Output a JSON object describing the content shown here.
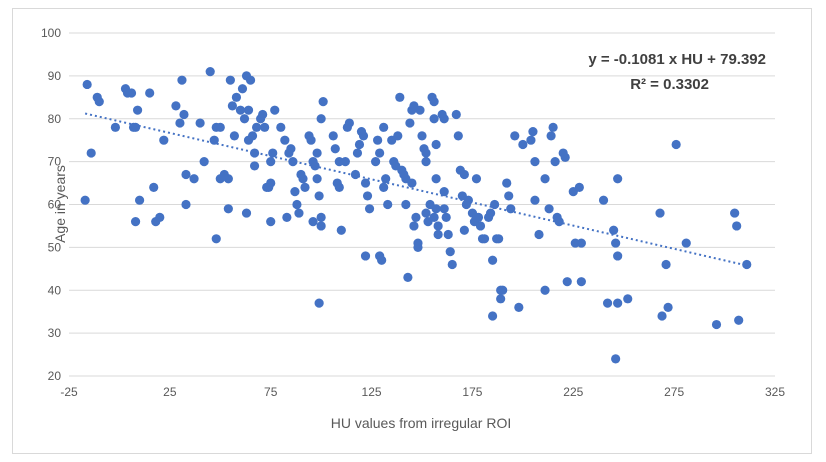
{
  "chart_data": {
    "type": "scatter",
    "title": "",
    "xlabel": "HU values from irregular ROI",
    "ylabel": "Age in years",
    "xlim": [
      -25,
      325
    ],
    "ylim": [
      20,
      100
    ],
    "x_ticks": [
      "-25",
      "25",
      "75",
      "125",
      "175",
      "225",
      "275",
      "325"
    ],
    "y_ticks": [
      "20",
      "30",
      "40",
      "50",
      "60",
      "70",
      "80",
      "90",
      "100"
    ],
    "grid": "horizontal",
    "legend": "none",
    "marker_color": "#4472C4",
    "trendline": {
      "type": "linear",
      "slope": -0.1081,
      "intercept": 79.392,
      "equation": "y = -0.1081 x HU + 79.392",
      "r_squared": "R² = 0.3302"
    },
    "points": [
      [
        -16,
        88
      ],
      [
        -14,
        72
      ],
      [
        -11,
        85
      ],
      [
        -10,
        84
      ],
      [
        -17,
        61
      ],
      [
        -2,
        78
      ],
      [
        3,
        87
      ],
      [
        4,
        86
      ],
      [
        6,
        86
      ],
      [
        8,
        78
      ],
      [
        9,
        82
      ],
      [
        7,
        78
      ],
      [
        10,
        61
      ],
      [
        8,
        56
      ],
      [
        15,
        86
      ],
      [
        17,
        64
      ],
      [
        18,
        56
      ],
      [
        20,
        57
      ],
      [
        22,
        75
      ],
      [
        28,
        83
      ],
      [
        30,
        79
      ],
      [
        31,
        89
      ],
      [
        32,
        81
      ],
      [
        33,
        67
      ],
      [
        33,
        60
      ],
      [
        37,
        66
      ],
      [
        40,
        79
      ],
      [
        42,
        70
      ],
      [
        45,
        91
      ],
      [
        47,
        75
      ],
      [
        48,
        78
      ],
      [
        50,
        78
      ],
      [
        52,
        67
      ],
      [
        50,
        66
      ],
      [
        48,
        52
      ],
      [
        54,
        66
      ],
      [
        54,
        59
      ],
      [
        55,
        89
      ],
      [
        56,
        83
      ],
      [
        57,
        76
      ],
      [
        58,
        85
      ],
      [
        60,
        82
      ],
      [
        61,
        87
      ],
      [
        62,
        80
      ],
      [
        63,
        90
      ],
      [
        64,
        82
      ],
      [
        65,
        89
      ],
      [
        66,
        76
      ],
      [
        64,
        75
      ],
      [
        63,
        58
      ],
      [
        67,
        69
      ],
      [
        67,
        72
      ],
      [
        68,
        78
      ],
      [
        70,
        80
      ],
      [
        71,
        81
      ],
      [
        72,
        78
      ],
      [
        73,
        64
      ],
      [
        74,
        64
      ],
      [
        75,
        65
      ],
      [
        75,
        70
      ],
      [
        76,
        72
      ],
      [
        77,
        82
      ],
      [
        75,
        56
      ],
      [
        80,
        78
      ],
      [
        82,
        75
      ],
      [
        84,
        72
      ],
      [
        85,
        73
      ],
      [
        86,
        70
      ],
      [
        87,
        63
      ],
      [
        88,
        60
      ],
      [
        89,
        58
      ],
      [
        83,
        57
      ],
      [
        90,
        67
      ],
      [
        91,
        66
      ],
      [
        92,
        64
      ],
      [
        94,
        76
      ],
      [
        95,
        75
      ],
      [
        96,
        70
      ],
      [
        97,
        69
      ],
      [
        98,
        72
      ],
      [
        98,
        66
      ],
      [
        99,
        62
      ],
      [
        96,
        56
      ],
      [
        100,
        80
      ],
      [
        101,
        84
      ],
      [
        100,
        55
      ],
      [
        100,
        57
      ],
      [
        99,
        37
      ],
      [
        106,
        76
      ],
      [
        107,
        73
      ],
      [
        108,
        65
      ],
      [
        109,
        70
      ],
      [
        109,
        64
      ],
      [
        110,
        54
      ],
      [
        112,
        70
      ],
      [
        113,
        78
      ],
      [
        114,
        79
      ],
      [
        117,
        67
      ],
      [
        118,
        72
      ],
      [
        119,
        74
      ],
      [
        120,
        77
      ],
      [
        121,
        76
      ],
      [
        122,
        65
      ],
      [
        123,
        62
      ],
      [
        122,
        48
      ],
      [
        124,
        59
      ],
      [
        127,
        70
      ],
      [
        128,
        75
      ],
      [
        129,
        72
      ],
      [
        129,
        48
      ],
      [
        130,
        47
      ],
      [
        131,
        78
      ],
      [
        132,
        66
      ],
      [
        133,
        60
      ],
      [
        131,
        64
      ],
      [
        135,
        75
      ],
      [
        136,
        70
      ],
      [
        137,
        69
      ],
      [
        138,
        76
      ],
      [
        139,
        85
      ],
      [
        140,
        68
      ],
      [
        141,
        67
      ],
      [
        142,
        66
      ],
      [
        142,
        60
      ],
      [
        144,
        79
      ],
      [
        145,
        82
      ],
      [
        146,
        83
      ],
      [
        145,
        65
      ],
      [
        143,
        43
      ],
      [
        147,
        57
      ],
      [
        148,
        51
      ],
      [
        148,
        50
      ],
      [
        146,
        55
      ],
      [
        149,
        82
      ],
      [
        150,
        76
      ],
      [
        151,
        73
      ],
      [
        152,
        72
      ],
      [
        152,
        70
      ],
      [
        152,
        58
      ],
      [
        153,
        56
      ],
      [
        154,
        60
      ],
      [
        155,
        85
      ],
      [
        156,
        84
      ],
      [
        156,
        80
      ],
      [
        156,
        57
      ],
      [
        157,
        59
      ],
      [
        158,
        55
      ],
      [
        158,
        53
      ],
      [
        157,
        74
      ],
      [
        157,
        66
      ],
      [
        160,
        81
      ],
      [
        161,
        80
      ],
      [
        161,
        63
      ],
      [
        161,
        59
      ],
      [
        162,
        57
      ],
      [
        163,
        53
      ],
      [
        164,
        49
      ],
      [
        165,
        46
      ],
      [
        167,
        81
      ],
      [
        168,
        76
      ],
      [
        169,
        68
      ],
      [
        170,
        62
      ],
      [
        171,
        67
      ],
      [
        171,
        54
      ],
      [
        172,
        60
      ],
      [
        173,
        61
      ],
      [
        175,
        58
      ],
      [
        176,
        56
      ],
      [
        177,
        57
      ],
      [
        177,
        66
      ],
      [
        178,
        57
      ],
      [
        179,
        55
      ],
      [
        180,
        52
      ],
      [
        181,
        52
      ],
      [
        183,
        57
      ],
      [
        184,
        58
      ],
      [
        185,
        47
      ],
      [
        185,
        34
      ],
      [
        186,
        60
      ],
      [
        187,
        52
      ],
      [
        188,
        52
      ],
      [
        189,
        40
      ],
      [
        189,
        38
      ],
      [
        190,
        40
      ],
      [
        192,
        65
      ],
      [
        193,
        62
      ],
      [
        194,
        59
      ],
      [
        196,
        76
      ],
      [
        198,
        36
      ],
      [
        200,
        74
      ],
      [
        204,
        75
      ],
      [
        205,
        77
      ],
      [
        206,
        70
      ],
      [
        206,
        61
      ],
      [
        208,
        53
      ],
      [
        211,
        66
      ],
      [
        211,
        40
      ],
      [
        213,
        59
      ],
      [
        214,
        76
      ],
      [
        215,
        78
      ],
      [
        216,
        70
      ],
      [
        217,
        57
      ],
      [
        218,
        56
      ],
      [
        220,
        72
      ],
      [
        221,
        71
      ],
      [
        222,
        42
      ],
      [
        225,
        63
      ],
      [
        226,
        51
      ],
      [
        228,
        64
      ],
      [
        229,
        51
      ],
      [
        229,
        42
      ],
      [
        240,
        61
      ],
      [
        242,
        37
      ],
      [
        245,
        54
      ],
      [
        246,
        51
      ],
      [
        247,
        48
      ],
      [
        247,
        66
      ],
      [
        247,
        37
      ],
      [
        246,
        24
      ],
      [
        252,
        38
      ],
      [
        268,
        58
      ],
      [
        269,
        34
      ],
      [
        271,
        46
      ],
      [
        272,
        36
      ],
      [
        276,
        74
      ],
      [
        281,
        51
      ],
      [
        296,
        32
      ],
      [
        305,
        58
      ],
      [
        306,
        55
      ],
      [
        307,
        33
      ],
      [
        311,
        46
      ]
    ]
  }
}
